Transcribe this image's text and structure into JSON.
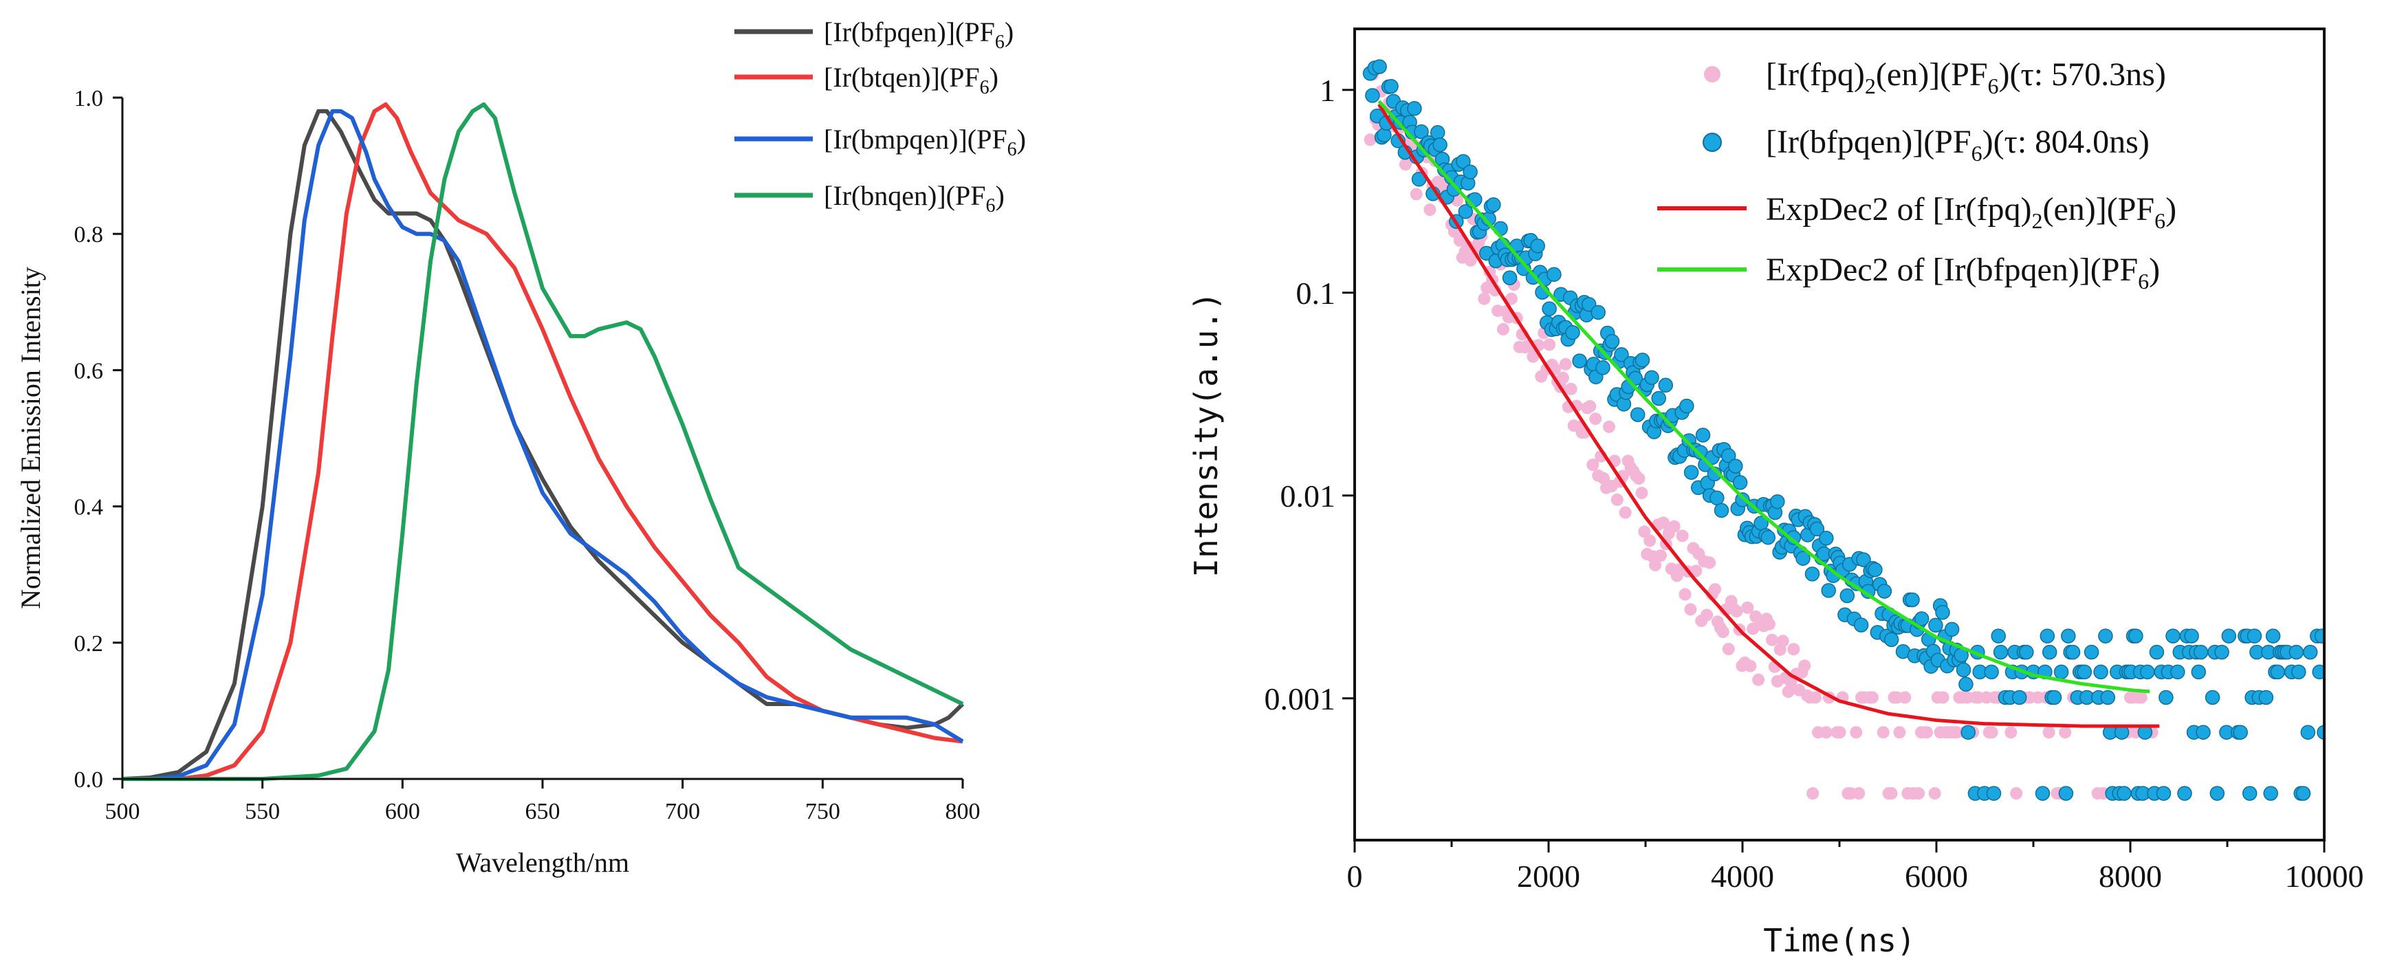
{
  "chart_data": [
    {
      "type": "line",
      "title": "",
      "xlabel": "Wavelength/nm",
      "ylabel": "Normalized Emission Intensity",
      "xlim": [
        500,
        800
      ],
      "ylim": [
        0,
        1.0
      ],
      "xticks": [
        "500",
        "550",
        "600",
        "650",
        "700",
        "750",
        "800"
      ],
      "yticks": [
        "0.0",
        "0.2",
        "0.4",
        "0.6",
        "0.8",
        "1.0"
      ],
      "legend_position": "top-right-outside",
      "series": [
        {
          "name": "[Ir(bfpqen)](PF6)",
          "label_main": "[Ir(bfpqen)](PF",
          "label_sub": "6",
          "label_end": ")",
          "color": "#4a4a4a",
          "x": [
            500,
            510,
            520,
            530,
            540,
            550,
            555,
            560,
            565,
            570,
            573,
            578,
            585,
            590,
            595,
            600,
            605,
            610,
            615,
            620,
            630,
            640,
            650,
            660,
            670,
            680,
            690,
            700,
            710,
            720,
            730,
            740,
            750,
            760,
            770,
            780,
            790,
            795,
            800
          ],
          "y": [
            0.0,
            0.002,
            0.01,
            0.04,
            0.14,
            0.4,
            0.6,
            0.8,
            0.93,
            0.98,
            0.98,
            0.95,
            0.89,
            0.85,
            0.83,
            0.83,
            0.83,
            0.82,
            0.79,
            0.74,
            0.63,
            0.52,
            0.44,
            0.37,
            0.32,
            0.28,
            0.24,
            0.2,
            0.17,
            0.14,
            0.11,
            0.11,
            0.1,
            0.09,
            0.08,
            0.075,
            0.08,
            0.09,
            0.11
          ]
        },
        {
          "name": "[Ir(btqen)](PF6)",
          "label_main": "[Ir(btqen)](PF",
          "label_sub": "6",
          "label_end": ")",
          "color": "#f03a3a",
          "x": [
            500,
            520,
            530,
            540,
            550,
            560,
            570,
            575,
            580,
            585,
            590,
            594,
            598,
            603,
            610,
            620,
            630,
            640,
            650,
            660,
            670,
            680,
            690,
            700,
            710,
            720,
            730,
            740,
            750,
            760,
            770,
            780,
            790,
            800
          ],
          "y": [
            0.0,
            0.0,
            0.005,
            0.02,
            0.07,
            0.2,
            0.45,
            0.65,
            0.83,
            0.93,
            0.98,
            0.99,
            0.97,
            0.92,
            0.86,
            0.82,
            0.8,
            0.75,
            0.66,
            0.56,
            0.47,
            0.4,
            0.34,
            0.29,
            0.24,
            0.2,
            0.15,
            0.12,
            0.1,
            0.09,
            0.08,
            0.07,
            0.06,
            0.055
          ]
        },
        {
          "name": "[Ir(bmpqen)](PF6)",
          "label_main": "[Ir(bmpqen)](PF",
          "label_sub": "6",
          "label_end": ")",
          "color": "#1f60d4",
          "x": [
            500,
            510,
            520,
            530,
            540,
            550,
            560,
            565,
            570,
            575,
            578,
            582,
            587,
            590,
            595,
            600,
            605,
            610,
            615,
            620,
            630,
            640,
            650,
            660,
            670,
            680,
            690,
            700,
            710,
            720,
            730,
            740,
            750,
            760,
            770,
            780,
            790,
            800
          ],
          "y": [
            0.0,
            0.0,
            0.004,
            0.02,
            0.08,
            0.27,
            0.62,
            0.82,
            0.93,
            0.98,
            0.98,
            0.97,
            0.92,
            0.88,
            0.84,
            0.81,
            0.8,
            0.8,
            0.79,
            0.76,
            0.64,
            0.52,
            0.42,
            0.36,
            0.33,
            0.3,
            0.26,
            0.21,
            0.17,
            0.14,
            0.12,
            0.11,
            0.1,
            0.09,
            0.09,
            0.09,
            0.08,
            0.055
          ]
        },
        {
          "name": "[Ir(bnqen)](PF6)",
          "label_main": "[Ir(bnqen)](PF",
          "label_sub": "6",
          "label_end": ")",
          "color": "#1fa35c",
          "x": [
            500,
            550,
            570,
            580,
            590,
            595,
            600,
            605,
            610,
            615,
            620,
            625,
            629,
            633,
            640,
            650,
            660,
            665,
            670,
            680,
            685,
            690,
            700,
            710,
            720,
            740,
            760,
            780,
            790,
            800
          ],
          "y": [
            0.0,
            0.0,
            0.005,
            0.015,
            0.07,
            0.16,
            0.36,
            0.58,
            0.76,
            0.88,
            0.95,
            0.98,
            0.99,
            0.97,
            0.86,
            0.72,
            0.65,
            0.65,
            0.66,
            0.67,
            0.66,
            0.62,
            0.52,
            0.41,
            0.31,
            0.25,
            0.19,
            0.15,
            0.13,
            0.11
          ]
        }
      ]
    },
    {
      "type": "scatter",
      "title": "",
      "xlabel": "Time(ns)",
      "ylabel": "Intensity(a.u.)",
      "xlim": [
        0,
        10000
      ],
      "ylim": [
        0.0002,
        2
      ],
      "yscale": "log",
      "xticks": [
        "0",
        "2000",
        "4000",
        "6000",
        "8000",
        "10000"
      ],
      "yticks": [
        "1",
        "0.1",
        "0.01",
        "0.001"
      ],
      "legend_position": "top-right",
      "series": [
        {
          "name": "[Ir(fpq)2(en)](PF6)(τ: 570.3ns)",
          "kind": "points",
          "color": "#f4b6d6",
          "tau_ns": 570.3,
          "label_a": "[Ir(fpq)",
          "label_sub1": "2",
          "label_b": "(en)](PF",
          "label_sub2": "6",
          "label_c": ")(τ:  570.3ns)"
        },
        {
          "name": "[Ir(bfpqen)](PF6)(τ: 804.0ns)",
          "kind": "points",
          "color": "#1aa6e0",
          "tau_ns": 804.0,
          "label_a": "[Ir(bfpqen)](PF",
          "label_sub": "6",
          "label_b": ")(τ:  804.0ns)"
        },
        {
          "name": "ExpDec2 of [Ir(fpq)2(en)](PF6)",
          "kind": "fit",
          "color": "#e8141c",
          "label_a": "ExpDec2 of  [Ir(fpq)",
          "label_sub1": "2",
          "label_b": "(en)](PF",
          "label_sub2": "6",
          "label_c": ")",
          "x": [
            250,
            500,
            1000,
            1500,
            2000,
            2500,
            3000,
            3500,
            4000,
            4500,
            5000,
            5500,
            6000,
            6500,
            7000,
            7500,
            8000,
            8300
          ],
          "y": [
            0.85,
            0.55,
            0.24,
            0.1,
            0.042,
            0.018,
            0.0078,
            0.0039,
            0.0021,
            0.0013,
            0.00097,
            0.00084,
            0.00078,
            0.00075,
            0.00074,
            0.00073,
            0.00073,
            0.00073
          ]
        },
        {
          "name": "ExpDec2 of [Ir(bfpqen)](PF6)",
          "kind": "fit",
          "color": "#2ee21e",
          "label_a": "ExpDec2 of [Ir(bfpqen)](PF",
          "label_sub": "6",
          "label_b": ")",
          "x": [
            250,
            500,
            1000,
            1500,
            2000,
            2500,
            3000,
            3500,
            4000,
            4500,
            5000,
            5500,
            6000,
            6500,
            7000,
            7500,
            8000,
            8200
          ],
          "y": [
            0.88,
            0.65,
            0.35,
            0.19,
            0.1,
            0.055,
            0.03,
            0.017,
            0.0098,
            0.0061,
            0.004,
            0.0028,
            0.002,
            0.0016,
            0.0013,
            0.00118,
            0.0011,
            0.00108
          ]
        }
      ]
    }
  ]
}
